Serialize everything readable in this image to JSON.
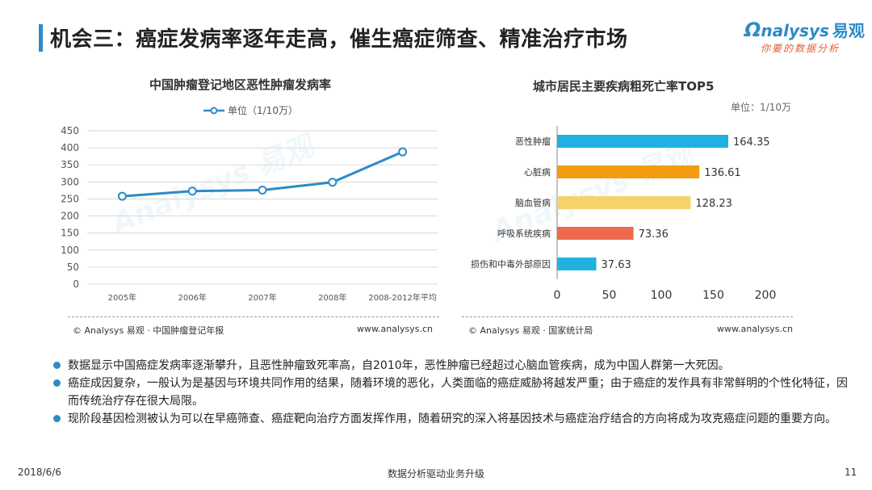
{
  "page_title": "机会三：癌症发病率逐年走高，催生癌症筛查、精准治疗市场",
  "logo": {
    "main": "nalysys",
    "brand_cn": "易观",
    "tagline": "你要的数据分析"
  },
  "left_chart": {
    "title": "中国肿瘤登记地区恶性肿瘤发病率",
    "legend": "单位（1/10万）",
    "source": "© Analysys 易观 · 中国肿瘤登记年报",
    "url": "www.analysys.cn"
  },
  "right_chart": {
    "title": "城市居民主要疾病粗死亡率TOP5",
    "unit": "单位：1/10万",
    "source": "© Analysys 易观 · 国家统计局",
    "url": "www.analysys.cn"
  },
  "chart_data": [
    {
      "type": "line",
      "title": "中国肿瘤登记地区恶性肿瘤发病率",
      "categories": [
        "2005年",
        "2006年",
        "2007年",
        "2008年",
        "2008-2012年平均"
      ],
      "series": [
        {
          "name": "单位（1/10万）",
          "values": [
            258,
            273,
            276,
            299,
            388
          ]
        }
      ],
      "ylim": [
        0,
        450
      ],
      "yticks": [
        0,
        50,
        100,
        150,
        200,
        250,
        300,
        350,
        400,
        450
      ],
      "grid": true,
      "legend": "top-center",
      "color": "#2d8bc6"
    },
    {
      "type": "bar",
      "orientation": "horizontal",
      "title": "城市居民主要疾病粗死亡率TOP5",
      "categories": [
        "恶性肿瘤",
        "心脏病",
        "脑血管病",
        "呼吸系统疾病",
        "损伤和中毒外部原因"
      ],
      "values": [
        164.35,
        136.61,
        128.23,
        73.36,
        37.63
      ],
      "value_labels": [
        "164.35",
        "136.61",
        "128.23",
        "73.36",
        "37.63"
      ],
      "colors": [
        "#1fb2e0",
        "#f39c12",
        "#f7d26b",
        "#ee6a4f",
        "#1fb2e0"
      ],
      "xlim": [
        0,
        200
      ],
      "xticks": [
        0,
        50,
        100,
        150,
        200
      ]
    }
  ],
  "bullets": [
    "数据显示中国癌症发病率逐渐攀升，且恶性肿瘤致死率高，自2010年，恶性肿瘤已经超过心脑血管疾病，成为中国人群第一大死因。",
    "癌症成因复杂，一般认为是基因与环境共同作用的结果，随着环境的恶化，人类面临的癌症威胁将越发严重；由于癌症的发作具有非常鲜明的个性化特征，因而传统治疗存在很大局限。",
    "现阶段基因检测被认为可以在早癌筛查、癌症靶向治疗方面发挥作用，随着研究的深入将基因技术与癌症治疗结合的方向将成为攻克癌症问题的重要方向。"
  ],
  "footer": {
    "date": "2018/6/6",
    "center": "数据分析驱动业务升级",
    "page": "11"
  }
}
